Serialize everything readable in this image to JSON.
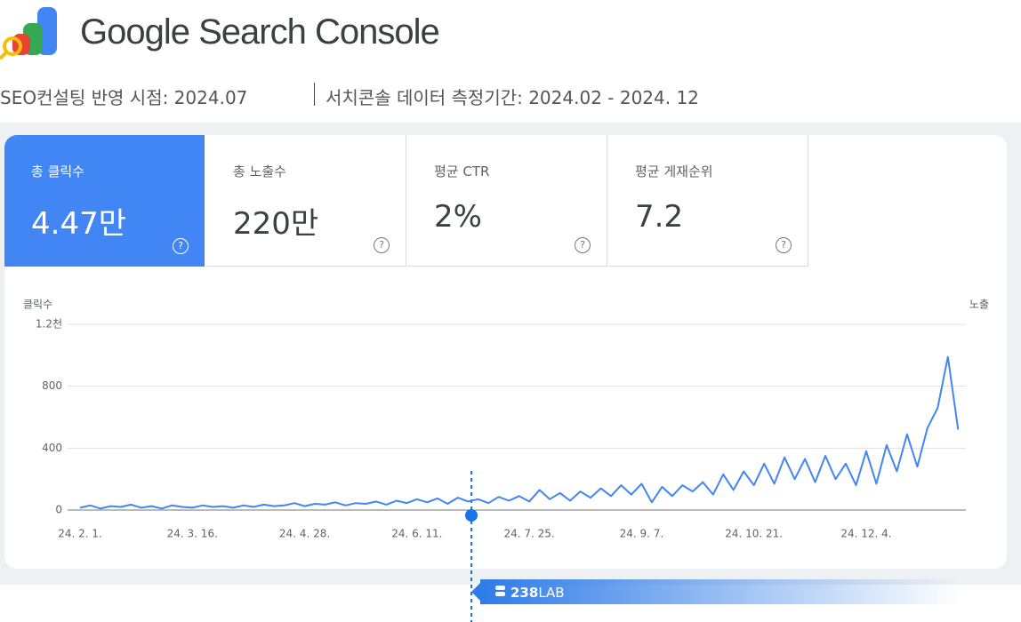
{
  "header": {
    "title": "Google Search Console",
    "subtitle": "SEO컨설팅 반영 시점: 2024.07",
    "subtitle2": "서치콘솔 데이터 측정기간: 2024.02 - 2024. 12"
  },
  "cards": [
    {
      "label": "총 클릭수",
      "value": "4.47만"
    },
    {
      "label": "총 노출수",
      "value": "220만"
    },
    {
      "label": "평균 CTR",
      "value": "2%"
    },
    {
      "label": "평균 게재순위",
      "value": "7.2"
    }
  ],
  "chart_data": {
    "type": "line",
    "y_label": "클릭수",
    "y2_label": "노출",
    "color": "#4285f4",
    "categories": [
      "24. 2. 1.",
      null,
      null,
      null,
      null,
      null,
      null,
      null,
      null,
      null,
      null,
      "24. 3. 16.",
      null,
      null,
      null,
      null,
      null,
      null,
      null,
      null,
      null,
      null,
      "24. 4. 28.",
      null,
      null,
      null,
      null,
      null,
      null,
      null,
      null,
      null,
      null,
      "24. 6. 11.",
      null,
      null,
      null,
      null,
      null,
      null,
      null,
      null,
      null,
      null,
      "24. 7. 25.",
      null,
      null,
      null,
      null,
      null,
      null,
      null,
      null,
      null,
      null,
      "24. 9. 7.",
      null,
      null,
      null,
      null,
      null,
      null,
      null,
      null,
      null,
      null,
      "24. 10. 21.",
      null,
      null,
      null,
      null,
      null,
      null,
      null,
      null,
      null,
      null,
      "24. 12. 4.",
      null,
      null,
      null,
      null,
      null,
      null,
      null,
      null,
      null
    ],
    "values": [
      15,
      30,
      10,
      25,
      20,
      35,
      15,
      25,
      10,
      30,
      20,
      15,
      30,
      20,
      25,
      15,
      30,
      20,
      35,
      25,
      30,
      45,
      25,
      40,
      35,
      50,
      30,
      45,
      40,
      55,
      35,
      60,
      45,
      70,
      50,
      75,
      40,
      80,
      55,
      70,
      45,
      85,
      60,
      90,
      55,
      130,
      70,
      110,
      60,
      120,
      80,
      140,
      90,
      160,
      100,
      170,
      50,
      150,
      90,
      160,
      120,
      180,
      100,
      230,
      130,
      250,
      160,
      300,
      170,
      340,
      200,
      330,
      180,
      350,
      200,
      300,
      160,
      380,
      170,
      420,
      250,
      490,
      280,
      530,
      660,
      990,
      520
    ],
    "ylim": [
      0,
      1200
    ],
    "yticks": [
      0,
      400,
      800,
      {
        "value": 1200,
        "label": "1.2천"
      }
    ],
    "grid": true
  },
  "badge": {
    "number": "238",
    "text": "LAB"
  }
}
